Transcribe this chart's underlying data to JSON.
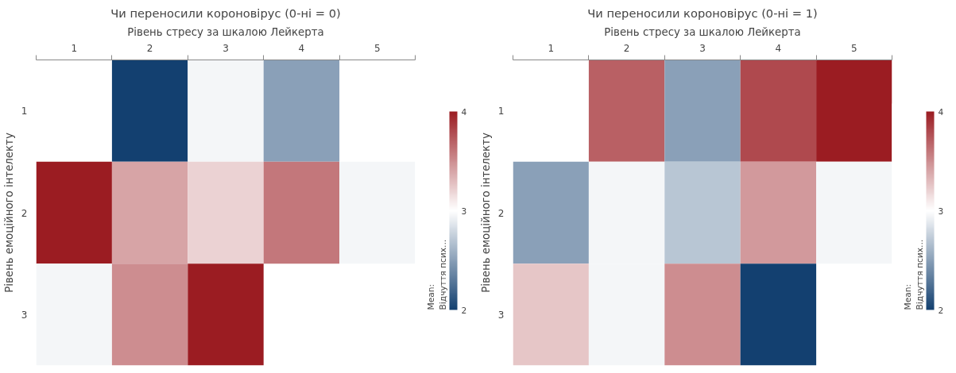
{
  "chart_data": [
    {
      "type": "heatmap",
      "title": "Чи переносили короновірус (0-ні = 0)",
      "xlabel": "Рівень стресу за шкалою Лейкерта",
      "ylabel": "Рівень емоційного інтелекту",
      "clabel": "Mean:\nВідчуття псих...",
      "categories": [
        "1",
        "2",
        "3",
        "4",
        "5"
      ],
      "y_categories": [
        "1",
        "2",
        "3"
      ],
      "cells": [
        [
          null,
          2.0,
          2.95,
          2.5,
          null
        ],
        [
          4.0,
          3.4,
          3.2,
          3.6,
          2.95
        ],
        [
          2.95,
          3.5,
          4.0,
          null,
          null
        ]
      ],
      "clim": [
        2,
        4
      ],
      "cticks": [
        2,
        3,
        4
      ],
      "grid": false
    },
    {
      "type": "heatmap",
      "title": "Чи переносили короновірус (0-ні = 1)",
      "xlabel": "Рівень стресу за шкалою Лейкерта",
      "ylabel": "Рівень емоційного інтелекту",
      "clabel": "Mean:\nВідчуття псих...",
      "categories": [
        "1",
        "2",
        "3",
        "4",
        "5"
      ],
      "y_categories": [
        "1",
        "2",
        "3"
      ],
      "cells": [
        [
          null,
          3.7,
          2.5,
          3.8,
          4.0
        ],
        [
          2.5,
          2.95,
          2.7,
          3.45,
          2.95
        ],
        [
          3.25,
          2.95,
          3.5,
          2.0,
          null
        ]
      ],
      "clim": [
        2,
        4
      ],
      "cticks": [
        2,
        3,
        4
      ],
      "grid": false
    }
  ]
}
